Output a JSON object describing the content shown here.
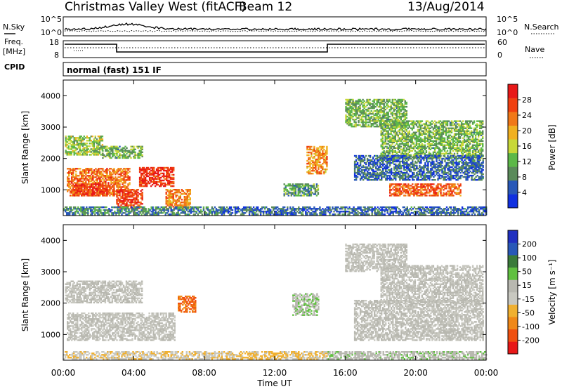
{
  "header": {
    "station": "Christmas Valley West (fitACF)",
    "beam": "Beam 12",
    "date": "13/Aug/2014"
  },
  "panels": {
    "nsky": {
      "left_label": "N.Sky",
      "left_ticks": [
        "10^5",
        "10^0"
      ],
      "right_ticks": [
        "10^5",
        "10^0"
      ],
      "right_label": "N.Search"
    },
    "freq": {
      "left_label_top": "Freq.",
      "left_label_bottom": "[MHz]",
      "left_ticks": [
        "18",
        "8"
      ],
      "right_ticks": [
        "60",
        "0"
      ],
      "right_label": "Nave"
    },
    "cpid": {
      "label": "CPID",
      "value": "normal (fast) 151 IF"
    }
  },
  "colors": {
    "power": [
      "#1030e0",
      "#2858b8",
      "#5a8a5a",
      "#5cb848",
      "#c8d838",
      "#f0b020",
      "#f07818",
      "#f04010",
      "#e81818"
    ],
    "velocity": [
      "#e81818",
      "#f05010",
      "#f08818",
      "#f0b030",
      "#c8c8c0",
      "#b8b8b0",
      "#60c040",
      "#3a7a3a",
      "#2858b8",
      "#2030c0"
    ]
  },
  "chart_data": [
    {
      "type": "heatmap",
      "name": "Power",
      "ylabel": "Slant Range [km]",
      "ylim": [
        180,
        4500
      ],
      "yticks": [
        "4000",
        "3000",
        "2000",
        "1000"
      ],
      "colorbar_label": "Power [dB]",
      "colorbar_ticks": [
        "28",
        "24",
        "20",
        "16",
        "12",
        "8",
        "4"
      ],
      "colorbar_range": [
        0,
        32
      ],
      "regions": [
        {
          "t0": 0.1,
          "t1": 2.2,
          "r0": 2100,
          "r1": 2700,
          "v": 14
        },
        {
          "t0": 2.2,
          "t1": 4.5,
          "r0": 2000,
          "r1": 2400,
          "v": 12
        },
        {
          "t0": 0.2,
          "t1": 3.8,
          "r0": 800,
          "r1": 1700,
          "v": 24
        },
        {
          "t0": 0.6,
          "t1": 2.5,
          "r0": 800,
          "r1": 1200,
          "v": 28
        },
        {
          "t0": 4.3,
          "t1": 6.3,
          "r0": 1100,
          "r1": 1700,
          "v": 28
        },
        {
          "t0": 3.0,
          "t1": 4.5,
          "r0": 400,
          "r1": 1000,
          "v": 27
        },
        {
          "t0": 5.8,
          "t1": 7.2,
          "r0": 400,
          "r1": 1000,
          "v": 22
        },
        {
          "t0": 0.0,
          "t1": 9.0,
          "r0": 200,
          "r1": 450,
          "v": 8
        },
        {
          "t0": 9.0,
          "t1": 15.0,
          "r0": 200,
          "r1": 450,
          "v": 6
        },
        {
          "t0": 12.5,
          "t1": 14.5,
          "r0": 800,
          "r1": 1200,
          "v": 10
        },
        {
          "t0": 13.8,
          "t1": 15.0,
          "r0": 1500,
          "r1": 2400,
          "v": 22
        },
        {
          "t0": 15.0,
          "t1": 24.0,
          "r0": 200,
          "r1": 450,
          "v": 6
        },
        {
          "t0": 16.0,
          "t1": 19.5,
          "r0": 3000,
          "r1": 3900,
          "v": 12
        },
        {
          "t0": 18.0,
          "t1": 23.8,
          "r0": 2000,
          "r1": 3200,
          "v": 12
        },
        {
          "t0": 16.5,
          "t1": 23.8,
          "r0": 1300,
          "r1": 2100,
          "v": 6
        },
        {
          "t0": 18.5,
          "t1": 22.5,
          "r0": 800,
          "r1": 1200,
          "v": 25
        }
      ]
    },
    {
      "type": "heatmap",
      "name": "Velocity",
      "ylabel": "Slant Range [km]",
      "xlabel": "Time UT",
      "ylim": [
        180,
        4500
      ],
      "yticks": [
        "4000",
        "3000",
        "2000",
        "1000"
      ],
      "xticks": [
        "00:00",
        "04:00",
        "08:00",
        "12:00",
        "16:00",
        "20:00",
        "00:00"
      ],
      "xlim": [
        0,
        24
      ],
      "colorbar_label": "Velocity [m s⁻¹]",
      "colorbar_ticks": [
        "200",
        "100",
        "50",
        "15",
        "-15",
        "-50",
        "-100",
        "-200"
      ],
      "colorbar_range": [
        -250,
        250
      ],
      "regions": [
        {
          "t0": 0.1,
          "t1": 4.5,
          "r0": 2000,
          "r1": 2700,
          "v": 0
        },
        {
          "t0": 0.2,
          "t1": 6.3,
          "r0": 800,
          "r1": 1700,
          "v": 0
        },
        {
          "t0": 6.5,
          "t1": 7.5,
          "r0": 1700,
          "r1": 2200,
          "v": -150
        },
        {
          "t0": 0.0,
          "t1": 9.0,
          "r0": 200,
          "r1": 450,
          "v": -40
        },
        {
          "t0": 9.0,
          "t1": 15.0,
          "r0": 200,
          "r1": 450,
          "v": -60
        },
        {
          "t0": 13.0,
          "t1": 14.5,
          "r0": 1600,
          "r1": 2300,
          "v": 40
        },
        {
          "t0": 15.0,
          "t1": 24.0,
          "r0": 200,
          "r1": 450,
          "v": 30
        },
        {
          "t0": 16.0,
          "t1": 19.5,
          "r0": 3000,
          "r1": 3900,
          "v": 0
        },
        {
          "t0": 18.0,
          "t1": 23.8,
          "r0": 2000,
          "r1": 3200,
          "v": 0
        },
        {
          "t0": 16.5,
          "t1": 23.8,
          "r0": 800,
          "r1": 2100,
          "v": 5
        }
      ]
    }
  ]
}
